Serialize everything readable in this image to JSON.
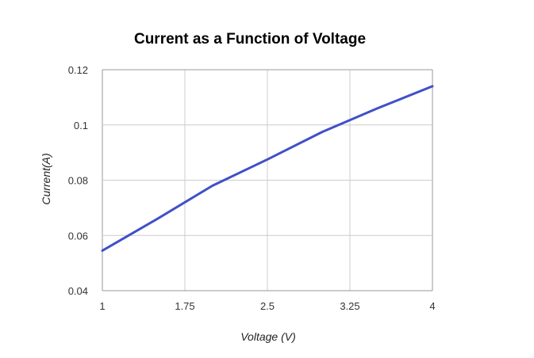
{
  "chart_data": {
    "type": "line",
    "title": "Current as a Function of Voltage",
    "xlabel": "Voltage (V)",
    "ylabel": "Current(A)",
    "xlim": [
      1,
      4
    ],
    "ylim": [
      0.04,
      0.12
    ],
    "x_ticks": [
      "1",
      "1.75",
      "2.5",
      "3.25",
      "4"
    ],
    "y_ticks": [
      "0.12",
      "0.1",
      "0.08",
      "0.06",
      "0.04"
    ],
    "grid": true,
    "legend": "none",
    "series": [
      {
        "color": "#4050c8",
        "x": [
          1,
          1.5,
          2,
          2.5,
          3,
          3.5,
          4
        ],
        "y": [
          0.0545,
          0.066,
          0.078,
          0.0875,
          0.0975,
          0.106,
          0.114
        ]
      }
    ]
  }
}
